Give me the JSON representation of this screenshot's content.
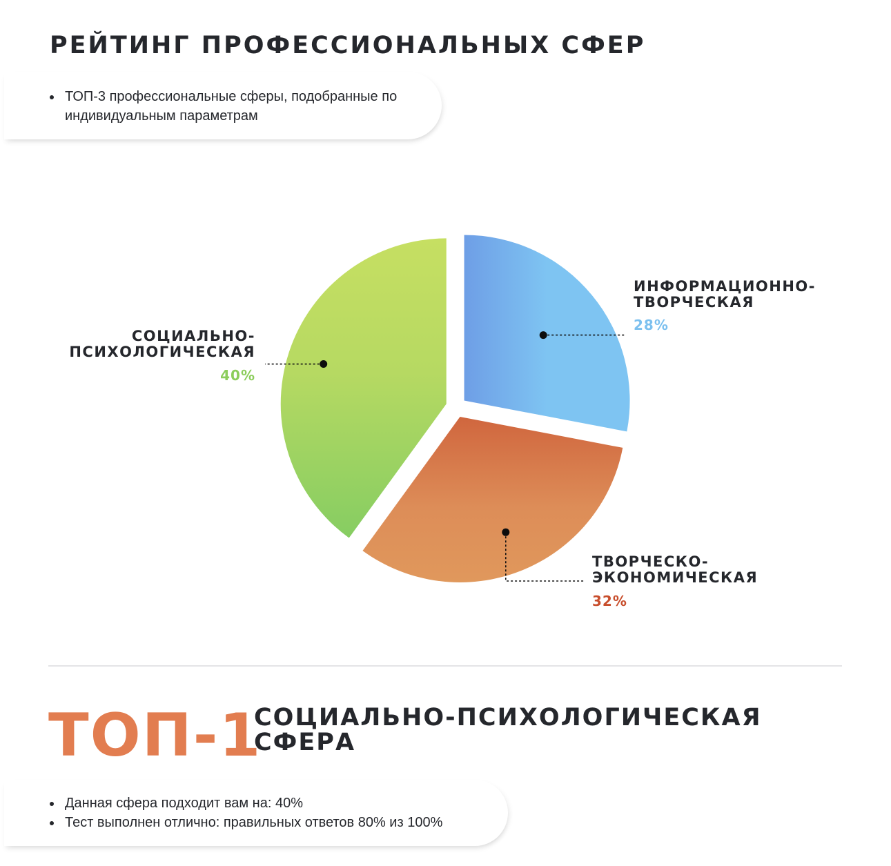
{
  "page": {
    "title": "РЕЙТИНГ ПРОФЕССИОНАЛЬНЫХ СФЕР",
    "intro_bullets": [
      "ТОП-3 профессиональные сферы, подобранные по индивидуальным параметрам"
    ]
  },
  "chart_data": {
    "type": "pie",
    "title": "",
    "slices": [
      {
        "name": "ИНФОРМАЦИОННО-ТВОРЧЕСКАЯ",
        "value": 28,
        "label": "28%",
        "color": "#6e9ee6",
        "color_light": "#7ec4f2",
        "label_color": "#7cc0ef"
      },
      {
        "name": "ТВОРЧЕСКО-ЭКОНОМИЧЕСКАЯ",
        "value": 32,
        "label": "32%",
        "color": "#d0663e",
        "color_light": "#e0985c",
        "label_color": "#c84e2c"
      },
      {
        "name": "СОЦИАЛЬНО-ПСИХОЛОГИЧЕСКАЯ",
        "value": 40,
        "label": "40%",
        "color": "#c6df62",
        "color_light": "#86cd62",
        "label_color": "#8ccd5c"
      }
    ],
    "exploded": true,
    "legend": "callouts"
  },
  "top": {
    "badge": "ТОП-1",
    "title": "СОЦИАЛЬНО-ПСИХОЛОГИЧЕСКАЯ СФЕРА",
    "bullets": [
      "Данная сфера подходит вам на: 40%",
      "Тест выполнен отлично: правильных ответов 80% из 100%"
    ]
  }
}
